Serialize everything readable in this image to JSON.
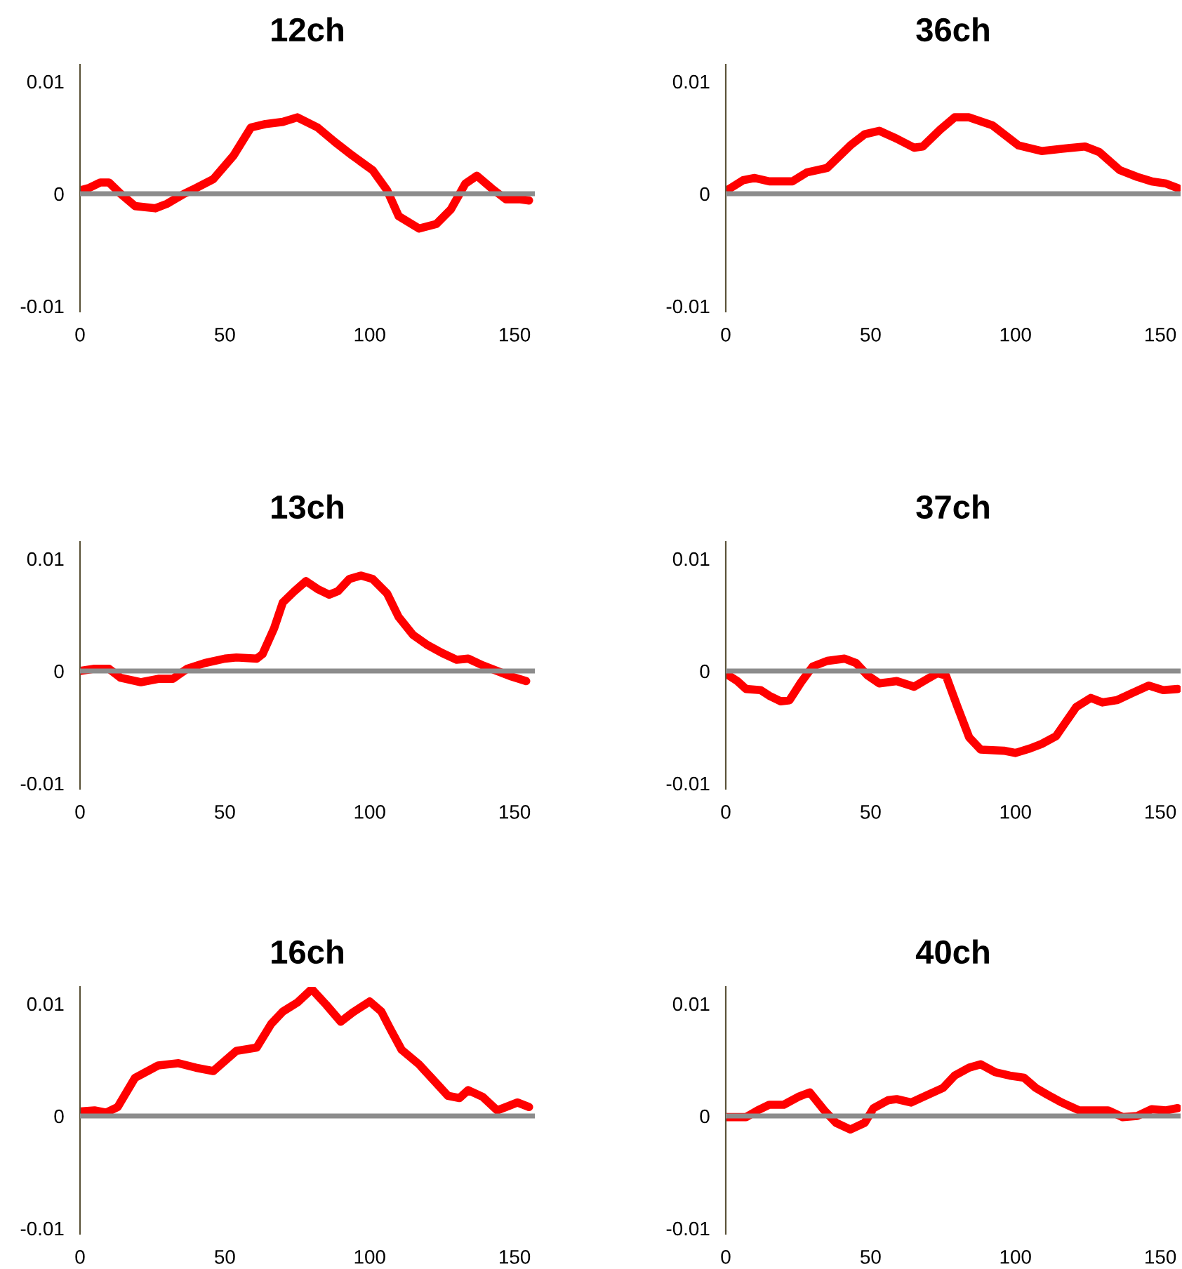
{
  "chart_data": [
    {
      "type": "line",
      "title": "12ch",
      "xlim": [
        0,
        157
      ],
      "ylim": [
        -0.0105,
        0.0115
      ],
      "xticks": [
        0,
        50,
        100,
        150
      ],
      "yticks": [
        -0.01,
        0,
        0.01
      ],
      "grid": false,
      "legend": false,
      "marker": "none",
      "line_style": "solid",
      "ref_lines": [
        {
          "axis": "y",
          "value": 0,
          "color": "#8c8c8c"
        }
      ],
      "x": [
        0,
        3,
        7,
        10,
        14,
        19,
        26,
        30,
        36,
        40,
        46,
        53,
        59,
        64,
        70,
        75,
        82,
        88,
        94,
        101,
        106,
        110,
        117,
        123,
        128,
        133,
        137,
        142,
        147,
        152,
        155
      ],
      "series": [
        {
          "color": "#ff0000",
          "values": [
            0.0003,
            0.0005,
            0.001,
            0.001,
            0,
            -0.0011,
            -0.0013,
            -0.0009,
            0,
            0.0005,
            0.0013,
            0.0034,
            0.0059,
            0.0062,
            0.0064,
            0.0068,
            0.0059,
            0.0046,
            0.0034,
            0.0021,
            0.0003,
            -0.002,
            -0.0031,
            -0.0027,
            -0.0014,
            0.0009,
            0.0016,
            0.0005,
            -0.0005,
            -0.0005,
            -0.0006
          ]
        }
      ]
    },
    {
      "type": "line",
      "title": "36ch",
      "xlim": [
        0,
        157
      ],
      "ylim": [
        -0.0105,
        0.0115
      ],
      "xticks": [
        0,
        50,
        100,
        150
      ],
      "yticks": [
        -0.01,
        0,
        0.01
      ],
      "grid": false,
      "legend": false,
      "marker": "none",
      "line_style": "solid",
      "ref_lines": [
        {
          "axis": "y",
          "value": 0,
          "color": "#8c8c8c"
        }
      ],
      "x": [
        1,
        6,
        10,
        15,
        23,
        28,
        35,
        43,
        48,
        53,
        59,
        65,
        68,
        74,
        79,
        84,
        92,
        101,
        109,
        116,
        124,
        129,
        136,
        142,
        147,
        152,
        156
      ],
      "series": [
        {
          "color": "#ff0000",
          "values": [
            0.0004,
            0.0012,
            0.0014,
            0.0011,
            0.0011,
            0.0019,
            0.0023,
            0.0043,
            0.0053,
            0.0056,
            0.0049,
            0.0041,
            0.0042,
            0.0057,
            0.0068,
            0.0068,
            0.0061,
            0.0043,
            0.0038,
            0.004,
            0.0042,
            0.0037,
            0.0021,
            0.0015,
            0.0011,
            0.0009,
            0.0005
          ]
        }
      ]
    },
    {
      "type": "line",
      "title": "13ch",
      "xlim": [
        0,
        157
      ],
      "ylim": [
        -0.0105,
        0.0115
      ],
      "xticks": [
        0,
        50,
        100,
        150
      ],
      "yticks": [
        -0.01,
        0,
        0.01
      ],
      "grid": false,
      "legend": false,
      "marker": "none",
      "line_style": "solid",
      "ref_lines": [
        {
          "axis": "y",
          "value": 0,
          "color": "#8c8c8c"
        }
      ],
      "x": [
        0,
        5,
        10,
        14,
        21,
        27,
        32,
        37,
        43,
        50,
        54,
        61,
        63,
        67,
        70,
        74,
        78,
        82,
        86,
        89,
        93,
        97,
        101,
        106,
        110,
        115,
        120,
        125,
        130,
        134,
        139,
        144,
        149,
        154
      ],
      "series": [
        {
          "color": "#ff0000",
          "values": [
            0,
            0.0002,
            0.0002,
            -0.0006,
            -0.001,
            -0.0007,
            -0.0007,
            0.0002,
            0.0007,
            0.0011,
            0.0012,
            0.0011,
            0.0015,
            0.0038,
            0.0061,
            0.0071,
            0.008,
            0.0073,
            0.0068,
            0.0071,
            0.0082,
            0.0085,
            0.0082,
            0.0069,
            0.0048,
            0.0032,
            0.0023,
            0.0016,
            0.001,
            0.0011,
            0.0005,
            0,
            -0.0005,
            -0.0009
          ]
        }
      ]
    },
    {
      "type": "line",
      "title": "37ch",
      "xlim": [
        0,
        157
      ],
      "ylim": [
        -0.0105,
        0.0115
      ],
      "xticks": [
        0,
        50,
        100,
        150
      ],
      "yticks": [
        -0.01,
        0,
        0.01
      ],
      "grid": false,
      "legend": false,
      "marker": "none",
      "line_style": "solid",
      "ref_lines": [
        {
          "axis": "y",
          "value": 0,
          "color": "#8c8c8c"
        }
      ],
      "x": [
        1,
        4,
        7,
        12,
        15,
        19,
        22,
        26,
        30,
        35,
        41,
        45,
        49,
        53,
        59,
        65,
        69,
        73,
        76,
        80,
        84,
        88,
        96,
        100,
        105,
        109,
        114,
        121,
        126,
        130,
        135,
        140,
        146,
        151,
        156
      ],
      "series": [
        {
          "color": "#ff0000",
          "values": [
            -0.0004,
            -0.0009,
            -0.0016,
            -0.0017,
            -0.0022,
            -0.0027,
            -0.0026,
            -0.001,
            0.0004,
            0.0009,
            0.0011,
            0.0007,
            -0.0004,
            -0.0011,
            -0.0009,
            -0.0014,
            -0.0008,
            -0.0002,
            -0.0004,
            -0.0032,
            -0.0059,
            -0.007,
            -0.0071,
            -0.0073,
            -0.0069,
            -0.0065,
            -0.0058,
            -0.0032,
            -0.0024,
            -0.0028,
            -0.0026,
            -0.002,
            -0.0013,
            -0.0017,
            -0.0016
          ]
        }
      ]
    },
    {
      "type": "line",
      "title": "16ch",
      "xlim": [
        0,
        157
      ],
      "ylim": [
        -0.0105,
        0.0115
      ],
      "xticks": [
        0,
        50,
        100,
        150
      ],
      "yticks": [
        -0.01,
        0,
        0.01
      ],
      "grid": false,
      "legend": false,
      "marker": "none",
      "line_style": "solid",
      "ref_lines": [
        {
          "axis": "y",
          "value": 0,
          "color": "#8c8c8c"
        }
      ],
      "x": [
        0,
        5,
        9,
        13,
        19,
        27,
        34,
        40,
        46,
        54,
        61,
        66,
        70,
        75,
        80,
        85,
        90,
        94,
        100,
        104,
        107,
        111,
        117,
        122,
        127,
        131,
        134,
        139,
        144,
        147,
        151,
        155
      ],
      "series": [
        {
          "color": "#ff0000",
          "values": [
            0.0004,
            0.0005,
            0.0003,
            0.0008,
            0.0034,
            0.0045,
            0.0047,
            0.0043,
            0.004,
            0.0058,
            0.0061,
            0.0082,
            0.0093,
            0.0101,
            0.0113,
            0.0099,
            0.0084,
            0.0092,
            0.0102,
            0.0093,
            0.0078,
            0.0059,
            0.0046,
            0.0032,
            0.0018,
            0.0016,
            0.0023,
            0.0017,
            0.0005,
            0.0008,
            0.0012,
            0.0008
          ]
        }
      ]
    },
    {
      "type": "line",
      "title": "40ch",
      "xlim": [
        0,
        157
      ],
      "ylim": [
        -0.0105,
        0.0115
      ],
      "xticks": [
        0,
        50,
        100,
        150
      ],
      "yticks": [
        -0.01,
        0,
        0.01
      ],
      "grid": false,
      "legend": false,
      "marker": "none",
      "line_style": "solid",
      "ref_lines": [
        {
          "axis": "y",
          "value": 0,
          "color": "#8c8c8c"
        }
      ],
      "x": [
        0,
        7,
        11,
        15,
        20,
        25,
        29,
        34,
        38,
        43,
        48,
        51,
        56,
        59,
        64,
        69,
        75,
        79,
        84,
        88,
        93,
        98,
        103,
        107,
        111,
        116,
        122,
        132,
        137,
        142,
        147,
        152,
        156
      ],
      "series": [
        {
          "color": "#ff0000",
          "values": [
            -0.0001,
            -0.0001,
            0.0005,
            0.001,
            0.001,
            0.0017,
            0.0021,
            0.0005,
            -0.0006,
            -0.0012,
            -0.0006,
            0.0007,
            0.0014,
            0.0015,
            0.0012,
            0.0018,
            0.0025,
            0.0036,
            0.0043,
            0.0046,
            0.0039,
            0.0036,
            0.0034,
            0.0025,
            0.0019,
            0.0012,
            0.0005,
            0.0005,
            -0.0001,
            0,
            0.0006,
            0.0005,
            0.0007
          ]
        }
      ]
    }
  ]
}
